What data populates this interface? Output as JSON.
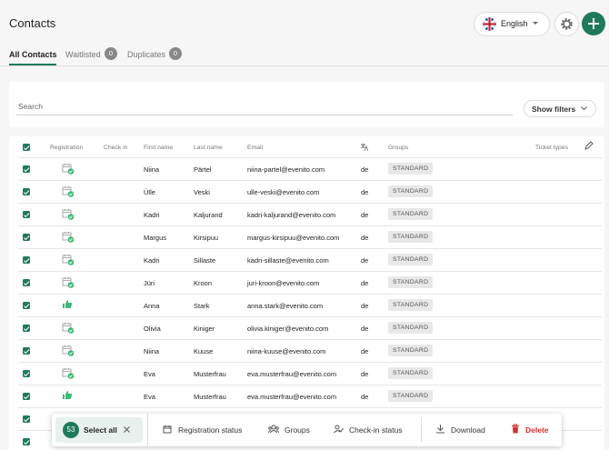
{
  "header": {
    "title": "Contacts",
    "language": "English"
  },
  "tabs": [
    {
      "label": "All Contacts"
    },
    {
      "label": "Waitlisted",
      "count": 0
    },
    {
      "label": "Duplicates",
      "count": 0
    }
  ],
  "search": {
    "placeholder": "Search",
    "filters_button": "Show filters"
  },
  "table": {
    "columns": [
      "Registration",
      "Check in",
      "First name",
      "Last name",
      "Email",
      "Groups",
      "Ticket types"
    ],
    "rows": [
      [
        "Niina",
        "Pärtel",
        "niina-partel@evenito.com",
        "de",
        "STANDARD"
      ],
      [
        "Ülle",
        "Veski",
        "ulle-veski@evenito.com",
        "de",
        "STANDARD"
      ],
      [
        "Kadri",
        "Kaljurand",
        "kadri-kaljurand@evenito.com",
        "de",
        "STANDARD"
      ],
      [
        "Margus",
        "Kirsipuu",
        "margus-kirsipuu@evenito.com",
        "de",
        "STANDARD"
      ],
      [
        "Kadri",
        "Sillaste",
        "kadri-sillaste@evenito.com",
        "de",
        "STANDARD"
      ],
      [
        "Jüri",
        "Kroon",
        "juri-kroon@evenito.com",
        "de",
        "STANDARD"
      ],
      [
        "Anna",
        "Stark",
        "anna.stark@evenito.com",
        "de",
        "STANDARD"
      ],
      [
        "Olivia",
        "Kiniger",
        "olivia.kiniger@evenito.com",
        "de",
        "STANDARD"
      ],
      [
        "Niina",
        "Kuuse",
        "niina-kuuse@evenito.com",
        "de",
        "STANDARD"
      ],
      [
        "Eva",
        "Musterfrau",
        "eva.musterfrau@evenito.com",
        "de",
        "STANDARD"
      ],
      [
        "Eva",
        "Musterfrau",
        "eva.musterfrau@evenito.com",
        "de",
        "STANDARD"
      ]
    ]
  },
  "action_bar": {
    "selected_count": 53,
    "select_all": "Select all",
    "actions": [
      "Registration status",
      "Groups",
      "Check-in status",
      "Download",
      "Delete"
    ]
  }
}
